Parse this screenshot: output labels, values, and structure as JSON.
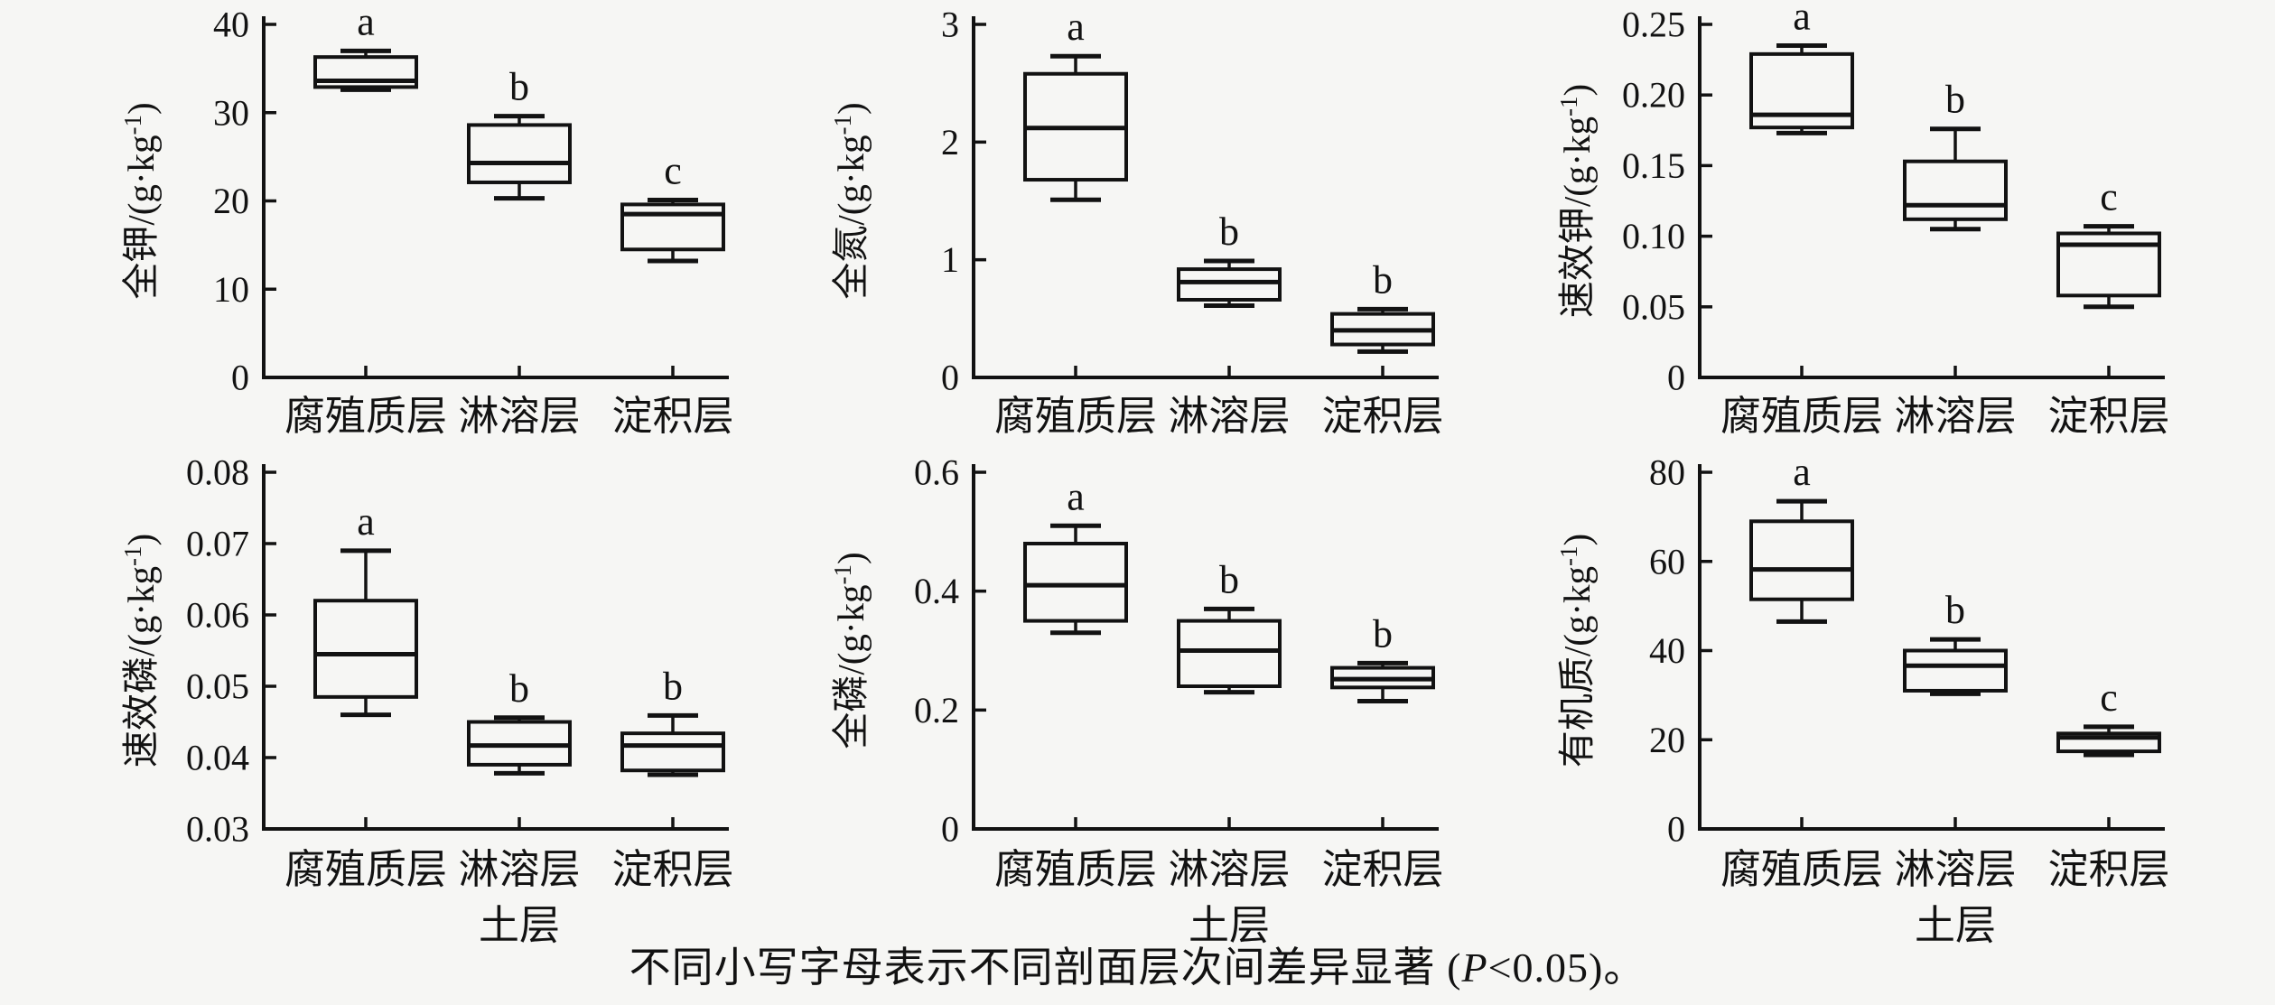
{
  "figure": {
    "background": "#f6f6f4",
    "ink": "#121212",
    "caption": {
      "prefix": "不同小写字母表示不同剖面层次间差异显著 (",
      "p": "P",
      "suffix": "<0.05)。"
    }
  },
  "categories": [
    "腐殖质层",
    "淋溶层",
    "淀积层"
  ],
  "xlabel": "土层",
  "chart_data": [
    {
      "type": "box",
      "id": "total-potassium",
      "title_cn": "全钾",
      "ylabel": "全钾/(g·kg⁻¹)",
      "ylim": [
        0,
        40
      ],
      "yticks": [
        {
          "value": 0,
          "label": "0"
        },
        {
          "value": 10,
          "label": "10"
        },
        {
          "value": 20,
          "label": "20"
        },
        {
          "value": 30,
          "label": "30"
        },
        {
          "value": 40,
          "label": "40"
        }
      ],
      "xlabel": "",
      "categories": [
        "腐殖质层",
        "淋溶层",
        "淀积层"
      ],
      "boxes": [
        {
          "category": "腐殖质层",
          "letter": "a",
          "whisker_low": 32.6,
          "q1": 32.9,
          "median": 33.6,
          "q3": 36.3,
          "whisker_high": 37.0
        },
        {
          "category": "淋溶层",
          "letter": "b",
          "whisker_low": 20.3,
          "q1": 22.1,
          "median": 24.3,
          "q3": 28.6,
          "whisker_high": 29.6
        },
        {
          "category": "淀积层",
          "letter": "c",
          "whisker_low": 13.2,
          "q1": 14.5,
          "median": 18.5,
          "q3": 19.6,
          "whisker_high": 20.1
        }
      ]
    },
    {
      "type": "box",
      "id": "total-nitrogen",
      "title_cn": "全氮",
      "ylabel": "全氮/(g·kg⁻¹)",
      "ylim": [
        0,
        3
      ],
      "yticks": [
        {
          "value": 0,
          "label": "0"
        },
        {
          "value": 1,
          "label": "1"
        },
        {
          "value": 2,
          "label": "2"
        },
        {
          "value": 3,
          "label": "3"
        }
      ],
      "xlabel": "",
      "categories": [
        "腐殖质层",
        "淋溶层",
        "淀积层"
      ],
      "boxes": [
        {
          "category": "腐殖质层",
          "letter": "a",
          "whisker_low": 1.51,
          "q1": 1.68,
          "median": 2.12,
          "q3": 2.58,
          "whisker_high": 2.73
        },
        {
          "category": "淋溶层",
          "letter": "b",
          "whisker_low": 0.61,
          "q1": 0.66,
          "median": 0.81,
          "q3": 0.92,
          "whisker_high": 0.99
        },
        {
          "category": "淀积层",
          "letter": "b",
          "whisker_low": 0.22,
          "q1": 0.28,
          "median": 0.4,
          "q3": 0.54,
          "whisker_high": 0.58
        }
      ]
    },
    {
      "type": "box",
      "id": "available-potassium",
      "title_cn": "速效钾",
      "ylabel": "速效钾/(g·kg⁻¹)",
      "ylim": [
        0,
        0.25
      ],
      "yticks": [
        {
          "value": 0,
          "label": "0"
        },
        {
          "value": 0.05,
          "label": "0.05"
        },
        {
          "value": 0.1,
          "label": "0.10"
        },
        {
          "value": 0.15,
          "label": "0.15"
        },
        {
          "value": 0.2,
          "label": "0.20"
        },
        {
          "value": 0.25,
          "label": "0.25"
        }
      ],
      "xlabel": "",
      "categories": [
        "腐殖质层",
        "淋溶层",
        "淀积层"
      ],
      "boxes": [
        {
          "category": "腐殖质层",
          "letter": "a",
          "whisker_low": 0.173,
          "q1": 0.177,
          "median": 0.186,
          "q3": 0.229,
          "whisker_high": 0.235
        },
        {
          "category": "淋溶层",
          "letter": "b",
          "whisker_low": 0.105,
          "q1": 0.112,
          "median": 0.122,
          "q3": 0.153,
          "whisker_high": 0.176
        },
        {
          "category": "淀积层",
          "letter": "c",
          "whisker_low": 0.05,
          "q1": 0.058,
          "median": 0.094,
          "q3": 0.102,
          "whisker_high": 0.107
        }
      ]
    },
    {
      "type": "box",
      "id": "available-phosphorus",
      "title_cn": "速效磷",
      "ylabel": "速效磷/(g·kg⁻¹)",
      "ylim": [
        0.03,
        0.08
      ],
      "yticks": [
        {
          "value": 0.03,
          "label": "0.03"
        },
        {
          "value": 0.04,
          "label": "0.04"
        },
        {
          "value": 0.05,
          "label": "0.05"
        },
        {
          "value": 0.06,
          "label": "0.06"
        },
        {
          "value": 0.07,
          "label": "0.07"
        },
        {
          "value": 0.08,
          "label": "0.08"
        }
      ],
      "xlabel": "土层",
      "categories": [
        "腐殖质层",
        "淋溶层",
        "淀积层"
      ],
      "boxes": [
        {
          "category": "腐殖质层",
          "letter": "a",
          "whisker_low": 0.046,
          "q1": 0.0485,
          "median": 0.0545,
          "q3": 0.062,
          "whisker_high": 0.069
        },
        {
          "category": "淋溶层",
          "letter": "b",
          "whisker_low": 0.0378,
          "q1": 0.039,
          "median": 0.0417,
          "q3": 0.045,
          "whisker_high": 0.0456
        },
        {
          "category": "淀积层",
          "letter": "b",
          "whisker_low": 0.0376,
          "q1": 0.0382,
          "median": 0.0417,
          "q3": 0.0434,
          "whisker_high": 0.0459
        }
      ]
    },
    {
      "type": "box",
      "id": "total-phosphorus",
      "title_cn": "全磷",
      "ylabel": "全磷/(g·kg⁻¹)",
      "ylim": [
        0,
        0.6
      ],
      "yticks": [
        {
          "value": 0,
          "label": "0"
        },
        {
          "value": 0.2,
          "label": "0.2"
        },
        {
          "value": 0.4,
          "label": "0.4"
        },
        {
          "value": 0.6,
          "label": "0.6"
        }
      ],
      "xlabel": "土层",
      "categories": [
        "腐殖质层",
        "淋溶层",
        "淀积层"
      ],
      "boxes": [
        {
          "category": "腐殖质层",
          "letter": "a",
          "whisker_low": 0.33,
          "q1": 0.35,
          "median": 0.41,
          "q3": 0.48,
          "whisker_high": 0.51
        },
        {
          "category": "淋溶层",
          "letter": "b",
          "whisker_low": 0.23,
          "q1": 0.24,
          "median": 0.3,
          "q3": 0.35,
          "whisker_high": 0.37
        },
        {
          "category": "淀积层",
          "letter": "b",
          "whisker_low": 0.215,
          "q1": 0.238,
          "median": 0.252,
          "q3": 0.271,
          "whisker_high": 0.279
        }
      ]
    },
    {
      "type": "box",
      "id": "organic-matter",
      "title_cn": "有机质",
      "ylabel": "有机质/(g·kg⁻¹)",
      "ylim": [
        0,
        80
      ],
      "yticks": [
        {
          "value": 0,
          "label": "0"
        },
        {
          "value": 20,
          "label": "20"
        },
        {
          "value": 40,
          "label": "40"
        },
        {
          "value": 60,
          "label": "60"
        },
        {
          "value": 80,
          "label": "80"
        }
      ],
      "xlabel": "土层",
      "categories": [
        "腐殖质层",
        "淋溶层",
        "淀积层"
      ],
      "boxes": [
        {
          "category": "腐殖质层",
          "letter": "a",
          "whisker_low": 46.5,
          "q1": 51.5,
          "median": 58.2,
          "q3": 69.0,
          "whisker_high": 73.5
        },
        {
          "category": "淋溶层",
          "letter": "b",
          "whisker_low": 30.3,
          "q1": 31.0,
          "median": 36.6,
          "q3": 40.0,
          "whisker_high": 42.5
        },
        {
          "category": "淀积层",
          "letter": "c",
          "whisker_low": 16.6,
          "q1": 17.4,
          "median": 20.5,
          "q3": 21.4,
          "whisker_high": 22.9
        }
      ]
    }
  ]
}
